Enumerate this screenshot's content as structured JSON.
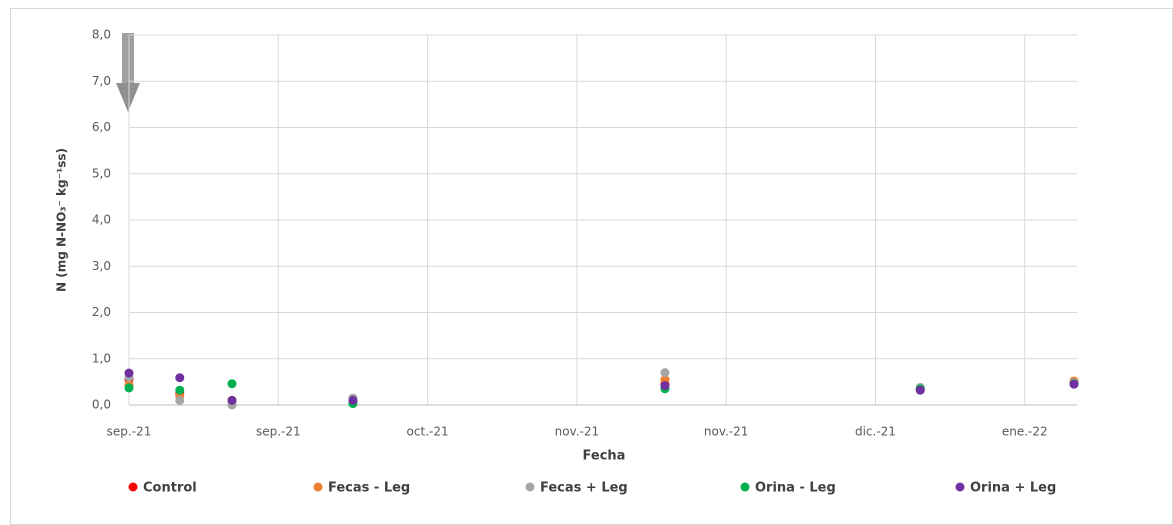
{
  "chart_data": {
    "type": "scatter",
    "x_label": "Fecha",
    "y_label": "N (mg N-NO₃⁻ kg⁻¹ss)",
    "xlim": [
      0,
      6.35
    ],
    "xticks": [
      {
        "value": 0,
        "label": "sep.-21"
      },
      {
        "value": 1,
        "label": "sep.-21"
      },
      {
        "value": 2,
        "label": "oct.-21"
      },
      {
        "value": 3,
        "label": "nov.-21"
      },
      {
        "value": 4,
        "label": "nov.-21"
      },
      {
        "value": 5,
        "label": "dic.-21"
      },
      {
        "value": 6,
        "label": "ene.-22"
      }
    ],
    "ylim": [
      0,
      8
    ],
    "yticks": [
      {
        "value": 0,
        "label": "0,0"
      },
      {
        "value": 1,
        "label": "1,0"
      },
      {
        "value": 2,
        "label": "2,0"
      },
      {
        "value": 3,
        "label": "3,0"
      },
      {
        "value": 4,
        "label": "4,0"
      },
      {
        "value": 5,
        "label": "5,0"
      },
      {
        "value": 6,
        "label": "6,0"
      },
      {
        "value": 7,
        "label": "7,0"
      },
      {
        "value": 8,
        "label": "8,0"
      }
    ],
    "grid": true,
    "legend": "bottom",
    "x": [
      0,
      0.34,
      0.69,
      1.5,
      3.59,
      5.3,
      6.33
    ],
    "series": [
      {
        "name": "Control",
        "color": "#ff0000",
        "values": [
          0.56,
          0.25,
          0.1,
          0.1,
          0.45,
          0.35,
          0.48
        ]
      },
      {
        "name": "Fecas - Leg",
        "color": "#ed7d31",
        "values": [
          0.43,
          0.2,
          0.1,
          0.1,
          0.55,
          0.35,
          0.52
        ]
      },
      {
        "name": "Fecas + Leg",
        "color": "#a5a5a5",
        "values": [
          0.6,
          0.1,
          0.0,
          0.15,
          0.7,
          0.38,
          0.48
        ]
      },
      {
        "name": "Orina - Leg",
        "color": "#00b050",
        "values": [
          0.37,
          0.32,
          0.46,
          0.03,
          0.35,
          0.35,
          0.46
        ]
      },
      {
        "name": "Orina + Leg",
        "color": "#7030a0",
        "values": [
          0.69,
          0.59,
          0.1,
          0.1,
          0.42,
          0.32,
          0.45
        ]
      }
    ]
  }
}
